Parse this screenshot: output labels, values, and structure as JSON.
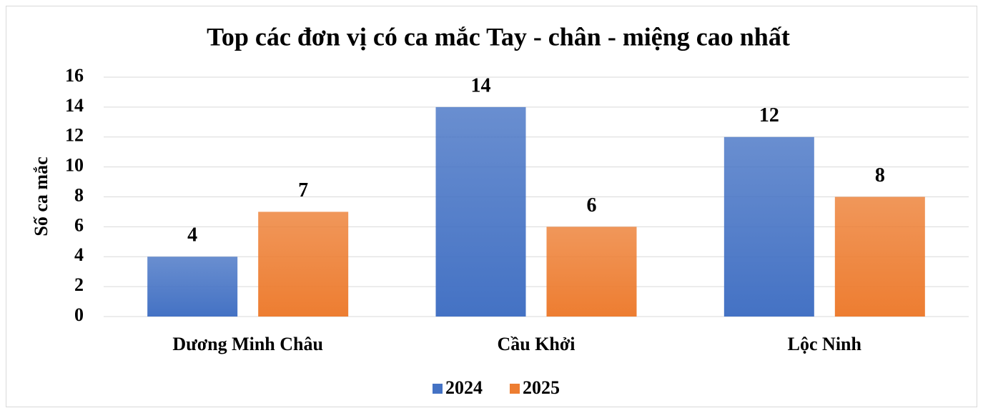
{
  "chart_data": {
    "type": "bar",
    "title": "Top các đơn vị có ca mắc Tay - chân - miệng cao nhất",
    "y_label": "Số ca mắc",
    "categories": [
      "Dương Minh Châu",
      "Cầu Khởi",
      "Lộc Ninh"
    ],
    "series": [
      {
        "name": "2024",
        "color": "#4472c4",
        "values": [
          4,
          14,
          12
        ]
      },
      {
        "name": "2025",
        "color": "#ed7d31",
        "values": [
          7,
          6,
          8
        ]
      }
    ],
    "ylim": [
      0,
      16
    ],
    "yticks": [
      0,
      2,
      4,
      6,
      8,
      10,
      12,
      14,
      16
    ],
    "grid": true,
    "legend": "bottom"
  }
}
